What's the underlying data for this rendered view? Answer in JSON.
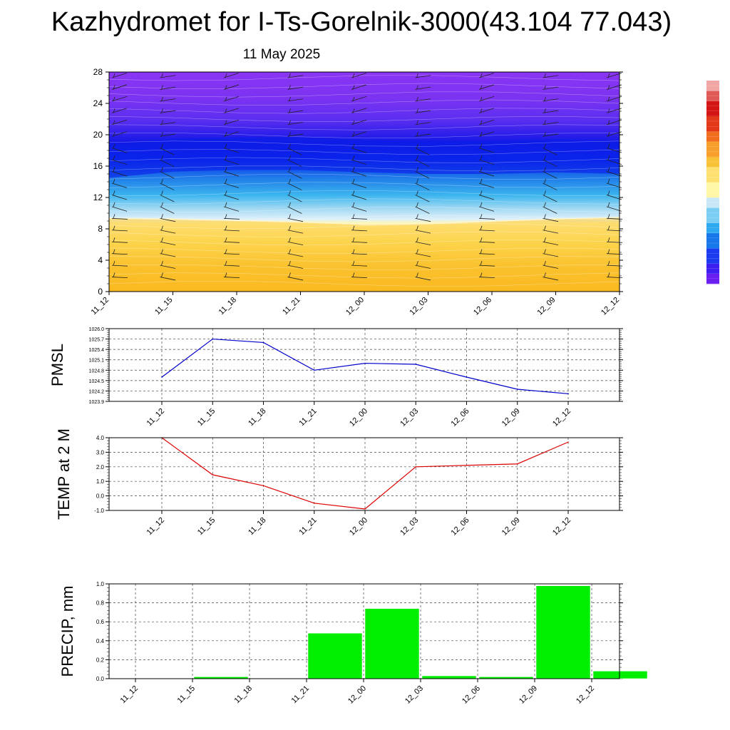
{
  "header": {
    "title": "Kazhydromet for I-Ts-Gorelnik-3000(43.104 77.043)",
    "subtitle": "11 May 2025"
  },
  "colors": {
    "pmsl_line": "#0000cc",
    "temp_line": "#dd0000",
    "precip_bar": "#00ee00"
  },
  "chart_data": [
    {
      "type": "heatmap",
      "title": "",
      "x_ticks": [
        "11_12",
        "11_15",
        "11_18",
        "11_21",
        "12_00",
        "12_03",
        "12_06",
        "12_09",
        "12_12"
      ],
      "y_ticks": [
        "0",
        "4",
        "8",
        "12",
        "16",
        "20",
        "24",
        "28"
      ],
      "ylim": [
        0,
        28
      ],
      "description_fields": {
        "warm_layer_top": [
          9.3,
          9.2,
          9.0,
          8.8,
          8.5,
          8.6,
          8.9,
          9.2,
          9.4
        ],
        "cold_core_level": [
          16.5,
          17.3,
          17.5,
          17.5,
          17.2,
          17.0,
          17.0,
          17.2,
          17.0
        ]
      },
      "colorbar_levels": 40,
      "grid": false
    },
    {
      "type": "line",
      "ylabel": "PMSL",
      "x": [
        "11_12",
        "11_15",
        "11_18",
        "11_21",
        "12_00",
        "12_03",
        "12_06",
        "12_09",
        "12_12"
      ],
      "series": [
        {
          "values": [
            1024.6,
            1025.7,
            1025.6,
            1024.8,
            1025.0,
            1024.97,
            1024.6,
            1024.25,
            1024.12
          ]
        }
      ],
      "y_ticks": [
        "1023.9",
        "1024.2",
        "1024.5",
        "1024.8",
        "1025.1",
        "1025.4",
        "1025.7",
        "1026.0"
      ],
      "ylim": [
        1023.9,
        1026.0
      ],
      "grid": true
    },
    {
      "type": "line",
      "ylabel": "TEMP at 2 M",
      "x": [
        "11_12",
        "11_15",
        "11_18",
        "11_21",
        "12_00",
        "12_03",
        "12_06",
        "12_09",
        "12_12"
      ],
      "series": [
        {
          "values": [
            4.0,
            1.45,
            0.7,
            -0.5,
            -0.9,
            2.0,
            2.1,
            2.2,
            3.7
          ]
        }
      ],
      "y_ticks": [
        "-1.0",
        "0.0",
        "1.0",
        "2.0",
        "3.0",
        "4.0"
      ],
      "ylim": [
        -1.0,
        4.0
      ],
      "grid": true
    },
    {
      "type": "bar",
      "ylabel": "PRECIP, mm",
      "categories": [
        "11_12",
        "11_15",
        "11_18",
        "11_21",
        "12_00",
        "12_03",
        "12_06",
        "12_09",
        "12_12"
      ],
      "values": [
        0.0,
        0.02,
        0.0,
        0.48,
        0.74,
        0.03,
        0.02,
        0.98,
        0.08
      ],
      "y_ticks": [
        "0.0",
        "0.2",
        "0.4",
        "0.6",
        "0.8",
        "1.0"
      ],
      "ylim": [
        0,
        1.0
      ],
      "grid": true
    }
  ]
}
